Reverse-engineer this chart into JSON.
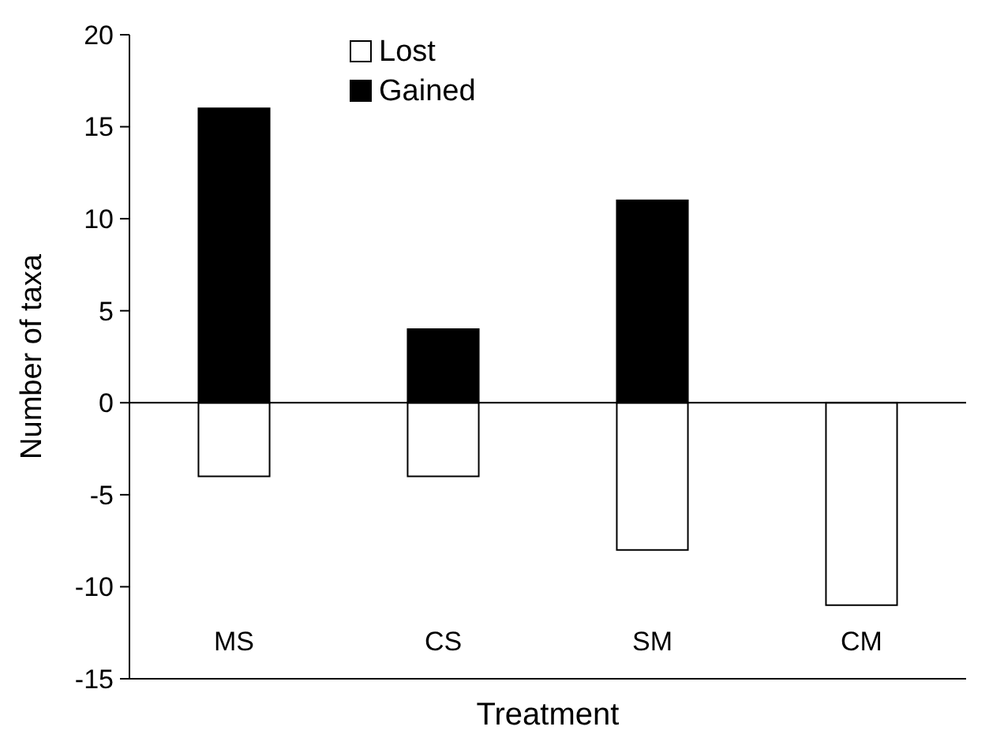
{
  "chart_data": {
    "type": "bar",
    "xlabel": "Treatment",
    "ylabel": "Number of taxa",
    "categories": [
      "MS",
      "CS",
      "SM",
      "CM"
    ],
    "series": [
      {
        "name": "Lost",
        "color": "#ffffff",
        "values": [
          -4,
          -4,
          -8,
          -11
        ]
      },
      {
        "name": "Gained",
        "color": "#000000",
        "values": [
          16,
          4,
          11,
          null
        ]
      }
    ],
    "stacked": true,
    "ylim": [
      -15,
      20
    ],
    "yticks": [
      -15,
      -10,
      -5,
      0,
      5,
      10,
      15,
      20
    ],
    "legend": "top left"
  }
}
